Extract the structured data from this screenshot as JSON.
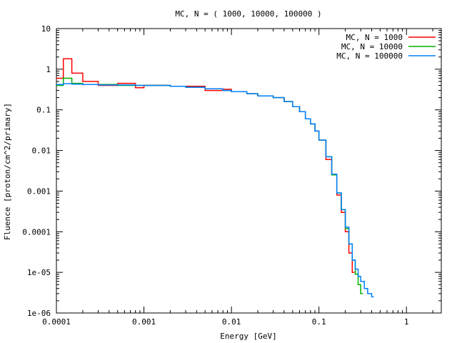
{
  "chart_data": {
    "type": "line",
    "title": "MC, N = ( 1000, 10000, 100000 )",
    "xlabel": "Energy [GeV]",
    "ylabel": "Fluence [proton/cm^2/primary]",
    "xscale": "log",
    "yscale": "log",
    "xlim": [
      0.0001,
      2.5
    ],
    "ylim": [
      1e-06,
      10
    ],
    "xticks": [
      "0.0001",
      "0.001",
      "0.01",
      "0.1",
      "1"
    ],
    "yticks": [
      "1e-06",
      "1e-05",
      "0.0001",
      "0.001",
      "0.01",
      "0.1",
      "1",
      "10"
    ],
    "legend_position": "top-right",
    "grid": false,
    "series": [
      {
        "name": "MC, N = 1000",
        "color": "#ff0000",
        "x": [
          0.0001,
          0.00012,
          0.00015,
          0.0002,
          0.0003,
          0.0005,
          0.0008,
          0.001,
          0.002,
          0.003,
          0.005,
          0.008,
          0.01,
          0.015,
          0.02,
          0.03,
          0.04,
          0.05,
          0.06,
          0.07,
          0.08,
          0.09,
          0.1,
          0.12,
          0.14,
          0.16,
          0.18,
          0.2,
          0.22,
          0.24
        ],
        "y": [
          0.6,
          1.8,
          0.8,
          0.5,
          0.4,
          0.45,
          0.35,
          0.4,
          0.38,
          0.38,
          0.3,
          0.32,
          0.28,
          0.25,
          0.22,
          0.2,
          0.16,
          0.12,
          0.09,
          0.06,
          0.045,
          0.03,
          0.018,
          0.006,
          0.0025,
          0.0008,
          0.0003,
          0.0001,
          3e-05,
          1e-05
        ]
      },
      {
        "name": "MC, N = 10000",
        "color": "#00b000",
        "x": [
          0.0001,
          0.00012,
          0.00015,
          0.0002,
          0.0003,
          0.0005,
          0.0008,
          0.001,
          0.002,
          0.003,
          0.005,
          0.008,
          0.01,
          0.015,
          0.02,
          0.03,
          0.04,
          0.05,
          0.06,
          0.07,
          0.08,
          0.09,
          0.1,
          0.12,
          0.14,
          0.16,
          0.18,
          0.2,
          0.22,
          0.24,
          0.26,
          0.28,
          0.3
        ],
        "y": [
          0.4,
          0.6,
          0.45,
          0.42,
          0.42,
          0.4,
          0.4,
          0.4,
          0.38,
          0.36,
          0.33,
          0.3,
          0.28,
          0.25,
          0.22,
          0.2,
          0.16,
          0.12,
          0.09,
          0.06,
          0.045,
          0.03,
          0.018,
          0.007,
          0.0025,
          0.0009,
          0.00035,
          0.00012,
          5e-05,
          2e-05,
          9e-06,
          5e-06,
          3e-06
        ]
      },
      {
        "name": "MC, N = 100000",
        "color": "#0080ff",
        "x": [
          0.0001,
          0.00012,
          0.00015,
          0.0002,
          0.0003,
          0.0005,
          0.0008,
          0.001,
          0.002,
          0.003,
          0.005,
          0.008,
          0.01,
          0.015,
          0.02,
          0.03,
          0.04,
          0.05,
          0.06,
          0.07,
          0.08,
          0.09,
          0.1,
          0.12,
          0.14,
          0.16,
          0.18,
          0.2,
          0.22,
          0.24,
          0.26,
          0.28,
          0.3,
          0.33,
          0.36,
          0.4
        ],
        "y": [
          0.42,
          0.44,
          0.43,
          0.42,
          0.41,
          0.41,
          0.4,
          0.4,
          0.38,
          0.36,
          0.33,
          0.3,
          0.28,
          0.25,
          0.22,
          0.2,
          0.16,
          0.12,
          0.09,
          0.06,
          0.045,
          0.03,
          0.018,
          0.007,
          0.0026,
          0.0009,
          0.00035,
          0.00013,
          5e-05,
          2e-05,
          1.2e-05,
          8e-06,
          6e-06,
          4e-06,
          3e-06,
          2.5e-06
        ]
      }
    ]
  }
}
